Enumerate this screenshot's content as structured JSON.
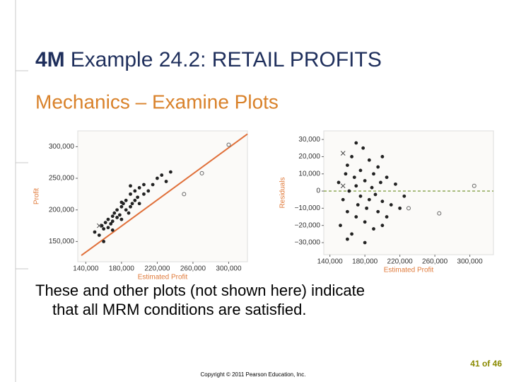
{
  "title_prefix": "4M",
  "title": "Example 24.2: RETAIL PROFITS",
  "subtitle": "Mechanics – Examine Plots",
  "body": [
    "These and other plots (not shown here) indicate",
    "that all MRM conditions are satisfied."
  ],
  "footer": "Copyright © 2011 Pearson Education, Inc.",
  "page_number": "41 of 46",
  "chart_data": [
    {
      "type": "scatter",
      "x_label": "Estimated Profit",
      "y_label": "Profit",
      "label_color": "#e07a3a",
      "xlim": [
        131000,
        321000
      ],
      "ylim": [
        118000,
        325000
      ],
      "xticks": [
        {
          "value": 140000,
          "label": "140,000"
        },
        {
          "value": 180000,
          "label": "180,000"
        },
        {
          "value": 220000,
          "label": "220,000"
        },
        {
          "value": 260000,
          "label": "260,000"
        },
        {
          "value": 300000,
          "label": "300,000"
        }
      ],
      "yticks": [
        {
          "value": 150000,
          "label": "150,000"
        },
        {
          "value": 200000,
          "label": "200,000"
        },
        {
          "value": 250000,
          "label": "250,000"
        },
        {
          "value": 300000,
          "label": "300,000"
        }
      ],
      "fit_line": {
        "color": "#e0703a",
        "x": [
          135000,
          321000
        ],
        "values": [
          128000,
          320000
        ]
      },
      "series": [
        {
          "color": "#222222",
          "marker": "dot",
          "x": [
            150000,
            155000,
            158000,
            160000,
            162000,
            165000,
            165000,
            168000,
            170000,
            170000,
            172000,
            175000,
            175000,
            178000,
            180000,
            180000,
            182000,
            185000,
            185000,
            188000,
            190000,
            190000,
            192000,
            195000,
            195000,
            198000,
            200000,
            200000,
            205000,
            205000,
            210000,
            215000,
            220000,
            225000,
            230000,
            235000,
            160000,
            170000,
            180000,
            190000
          ],
          "values": [
            165000,
            160000,
            175000,
            170000,
            180000,
            172000,
            185000,
            178000,
            190000,
            182000,
            195000,
            188000,
            200000,
            192000,
            205000,
            185000,
            210000,
            200000,
            215000,
            195000,
            205000,
            225000,
            210000,
            215000,
            230000,
            220000,
            235000,
            210000,
            225000,
            240000,
            230000,
            240000,
            250000,
            255000,
            245000,
            260000,
            150000,
            168000,
            212000,
            238000
          ]
        },
        {
          "color": "#444444",
          "marker": "x",
          "x": [
            155000
          ],
          "values": [
            175000
          ]
        },
        {
          "color": "#666666",
          "marker": "o",
          "x": [
            300000,
            270000,
            250000
          ],
          "values": [
            303000,
            258000,
            225000
          ]
        }
      ]
    },
    {
      "type": "scatter",
      "x_label": "Estimated Profit",
      "y_label": "Residuals",
      "label_color": "#e07a3a",
      "xlim": [
        133000,
        327000
      ],
      "ylim": [
        -37000,
        35000
      ],
      "xticks": [
        {
          "value": 140000,
          "label": "140,000"
        },
        {
          "value": 180000,
          "label": "180,000"
        },
        {
          "value": 220000,
          "label": "220,000"
        },
        {
          "value": 260000,
          "label": "260,000"
        },
        {
          "value": 300000,
          "label": "300,000"
        }
      ],
      "yticks": [
        {
          "value": 30000,
          "label": "30,000"
        },
        {
          "value": 20000,
          "label": "20,000"
        },
        {
          "value": 10000,
          "label": "10,000"
        },
        0,
        {
          "value": -10000,
          "label": "−10,000"
        },
        {
          "value": -20000,
          "label": "−20,000"
        },
        {
          "value": -30000,
          "label": "−30,000"
        }
      ],
      "hline": 0,
      "hline_color": "#6b8e23",
      "hline_dashed": true,
      "series": [
        {
          "color": "#222222",
          "marker": "dot",
          "x": [
            150000,
            152000,
            155000,
            158000,
            160000,
            160000,
            162000,
            165000,
            165000,
            168000,
            170000,
            170000,
            172000,
            175000,
            175000,
            178000,
            180000,
            180000,
            182000,
            185000,
            185000,
            188000,
            190000,
            190000,
            192000,
            195000,
            195000,
            198000,
            200000,
            200000,
            205000,
            205000,
            210000,
            215000,
            220000,
            225000,
            160000,
            170000,
            180000,
            200000
          ],
          "values": [
            5000,
            -20000,
            -5000,
            10000,
            -12000,
            15000,
            0,
            -25000,
            20000,
            8000,
            -15000,
            3000,
            -8000,
            12000,
            -3000,
            25000,
            -18000,
            6000,
            -10000,
            18000,
            -5000,
            2000,
            -22000,
            10000,
            -2000,
            14000,
            -12000,
            5000,
            -6000,
            20000,
            -15000,
            8000,
            -8000,
            4000,
            -10000,
            -3000,
            -28000,
            28000,
            -30000,
            -20000
          ]
        },
        {
          "color": "#444444",
          "marker": "x",
          "x": [
            155000,
            155000
          ],
          "values": [
            22000,
            3000
          ]
        },
        {
          "color": "#666666",
          "marker": "o",
          "x": [
            305000,
            230000,
            265000
          ],
          "values": [
            3000,
            -10000,
            -13000
          ]
        }
      ]
    }
  ]
}
